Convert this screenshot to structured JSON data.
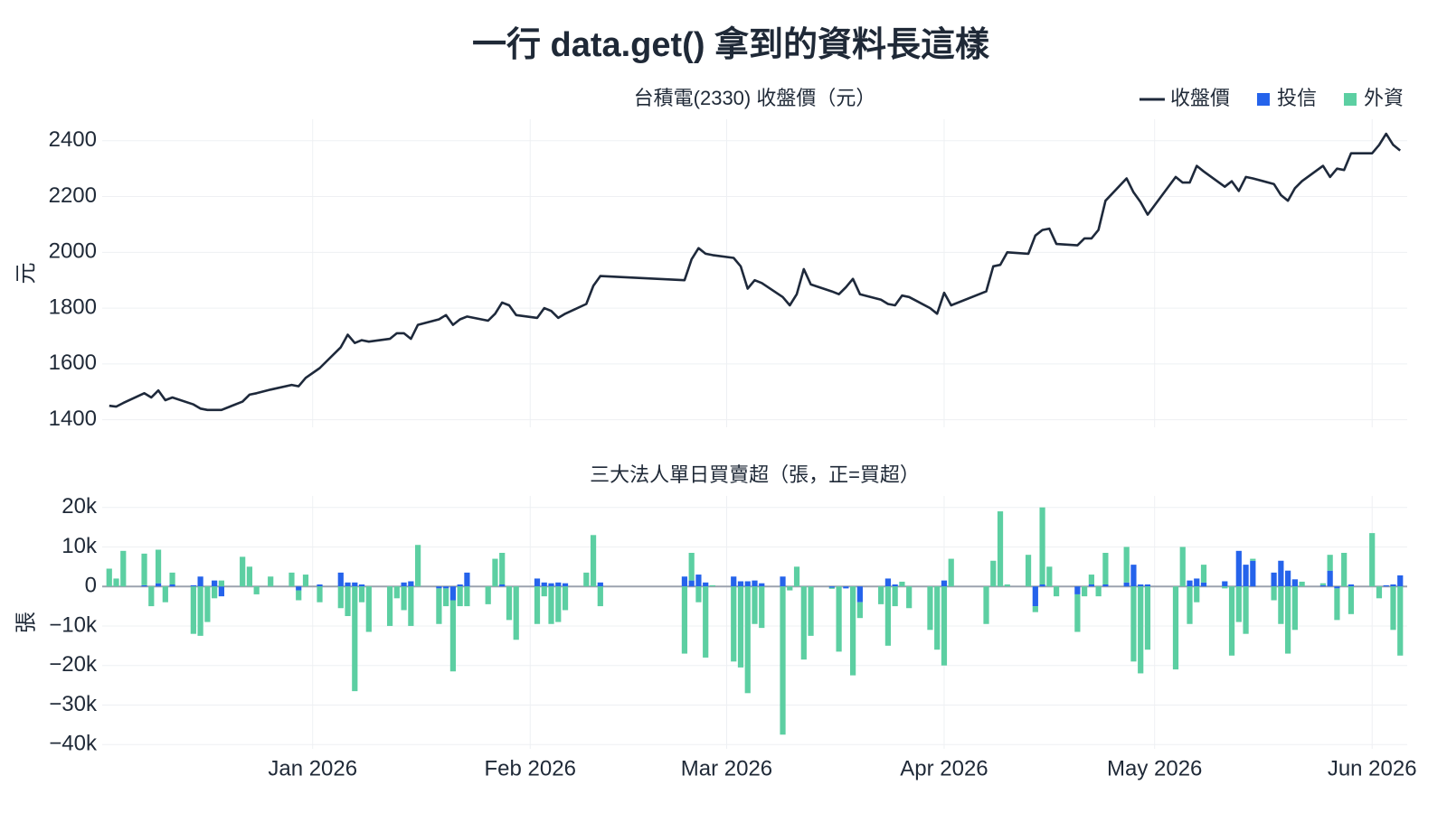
{
  "title": "一行 data.get() 拿到的資料長這樣",
  "legend": "top-right",
  "chart_data": [
    {
      "type": "line",
      "title": "台積電(2330) 收盤價（元）",
      "ylabel": "元",
      "x": [
        "2025-12-03",
        "2025-12-04",
        "2025-12-05",
        "2025-12-08",
        "2025-12-09",
        "2025-12-10",
        "2025-12-11",
        "2025-12-12",
        "2025-12-15",
        "2025-12-16",
        "2025-12-17",
        "2025-12-18",
        "2025-12-19",
        "2025-12-22",
        "2025-12-23",
        "2025-12-24",
        "2025-12-26",
        "2025-12-29",
        "2025-12-30",
        "2025-12-31",
        "2026-01-02",
        "2026-01-05",
        "2026-01-06",
        "2026-01-07",
        "2026-01-08",
        "2026-01-09",
        "2026-01-12",
        "2026-01-13",
        "2026-01-14",
        "2026-01-15",
        "2026-01-16",
        "2026-01-19",
        "2026-01-20",
        "2026-01-21",
        "2026-01-22",
        "2026-01-23",
        "2026-01-26",
        "2026-01-27",
        "2026-01-28",
        "2026-01-29",
        "2026-01-30",
        "2026-02-02",
        "2026-02-03",
        "2026-02-04",
        "2026-02-05",
        "2026-02-06",
        "2026-02-09",
        "2026-02-10",
        "2026-02-11",
        "2026-02-23",
        "2026-02-24",
        "2026-02-25",
        "2026-02-26",
        "2026-02-27",
        "2026-03-02",
        "2026-03-03",
        "2026-03-04",
        "2026-03-05",
        "2026-03-06",
        "2026-03-09",
        "2026-03-10",
        "2026-03-11",
        "2026-03-12",
        "2026-03-13",
        "2026-03-16",
        "2026-03-17",
        "2026-03-18",
        "2026-03-19",
        "2026-03-20",
        "2026-03-23",
        "2026-03-24",
        "2026-03-25",
        "2026-03-26",
        "2026-03-27",
        "2026-03-30",
        "2026-03-31",
        "2026-04-01",
        "2026-04-02",
        "2026-04-07",
        "2026-04-08",
        "2026-04-09",
        "2026-04-10",
        "2026-04-13",
        "2026-04-14",
        "2026-04-15",
        "2026-04-16",
        "2026-04-17",
        "2026-04-20",
        "2026-04-21",
        "2026-04-22",
        "2026-04-23",
        "2026-04-24",
        "2026-04-27",
        "2026-04-28",
        "2026-04-29",
        "2026-04-30",
        "2026-05-04",
        "2026-05-05",
        "2026-05-06",
        "2026-05-07",
        "2026-05-08",
        "2026-05-11",
        "2026-05-12",
        "2026-05-13",
        "2026-05-14",
        "2026-05-15",
        "2026-05-18",
        "2026-05-19",
        "2026-05-20",
        "2026-05-21",
        "2026-05-22",
        "2026-05-25",
        "2026-05-26",
        "2026-05-27",
        "2026-05-28",
        "2026-05-29",
        "2026-06-01",
        "2026-06-02",
        "2026-06-03",
        "2026-06-04",
        "2026-06-05"
      ],
      "series": [
        {
          "name": "收盤價",
          "color": "#1e293b",
          "values": [
            1450,
            1447,
            1460,
            1495,
            1480,
            1505,
            1470,
            1480,
            1455,
            1440,
            1435,
            1435,
            1435,
            1465,
            1490,
            1495,
            1508,
            1525,
            1520,
            1550,
            1585,
            1660,
            1705,
            1675,
            1685,
            1680,
            1690,
            1710,
            1710,
            1690,
            1740,
            1760,
            1775,
            1740,
            1760,
            1770,
            1755,
            1780,
            1820,
            1810,
            1775,
            1765,
            1800,
            1790,
            1765,
            1780,
            1815,
            1880,
            1915,
            1900,
            1975,
            2015,
            1995,
            1990,
            1980,
            1950,
            1870,
            1900,
            1890,
            1840,
            1810,
            1850,
            1940,
            1885,
            1860,
            1850,
            1875,
            1905,
            1850,
            1830,
            1815,
            1810,
            1845,
            1840,
            1800,
            1780,
            1855,
            1810,
            1860,
            1950,
            1955,
            2000,
            1995,
            2060,
            2080,
            2085,
            2030,
            2025,
            2050,
            2050,
            2080,
            2185,
            2265,
            2215,
            2180,
            2135,
            2270,
            2250,
            2250,
            2310,
            2290,
            2235,
            2255,
            2220,
            2270,
            2265,
            2245,
            2205,
            2185,
            2230,
            2255,
            2310,
            2270,
            2300,
            2295,
            2355,
            2355,
            2385,
            2425,
            2385,
            2365
          ]
        }
      ],
      "xlim": [
        "2025-12-02",
        "2026-06-06"
      ],
      "ylim": [
        1373,
        2477
      ],
      "yticks": [
        1400,
        1600,
        1800,
        2000,
        2200,
        2400
      ],
      "grid": true
    },
    {
      "type": "bar",
      "barmode": "relative",
      "title": "三大法人單日買賣超（張，正=買超）",
      "ylabel": "張",
      "x": [
        "2025-12-03",
        "2025-12-04",
        "2025-12-05",
        "2025-12-08",
        "2025-12-09",
        "2025-12-10",
        "2025-12-11",
        "2025-12-12",
        "2025-12-15",
        "2025-12-16",
        "2025-12-17",
        "2025-12-18",
        "2025-12-19",
        "2025-12-22",
        "2025-12-23",
        "2025-12-24",
        "2025-12-26",
        "2025-12-29",
        "2025-12-30",
        "2025-12-31",
        "2026-01-02",
        "2026-01-05",
        "2026-01-06",
        "2026-01-07",
        "2026-01-08",
        "2026-01-09",
        "2026-01-12",
        "2026-01-13",
        "2026-01-14",
        "2026-01-15",
        "2026-01-16",
        "2026-01-19",
        "2026-01-20",
        "2026-01-21",
        "2026-01-22",
        "2026-01-23",
        "2026-01-26",
        "2026-01-27",
        "2026-01-28",
        "2026-01-29",
        "2026-01-30",
        "2026-02-02",
        "2026-02-03",
        "2026-02-04",
        "2026-02-05",
        "2026-02-06",
        "2026-02-09",
        "2026-02-10",
        "2026-02-11",
        "2026-02-23",
        "2026-02-24",
        "2026-02-25",
        "2026-02-26",
        "2026-02-27",
        "2026-03-02",
        "2026-03-03",
        "2026-03-04",
        "2026-03-05",
        "2026-03-06",
        "2026-03-09",
        "2026-03-10",
        "2026-03-11",
        "2026-03-12",
        "2026-03-13",
        "2026-03-16",
        "2026-03-17",
        "2026-03-18",
        "2026-03-19",
        "2026-03-20",
        "2026-03-23",
        "2026-03-24",
        "2026-03-25",
        "2026-03-26",
        "2026-03-27",
        "2026-03-30",
        "2026-03-31",
        "2026-04-01",
        "2026-04-02",
        "2026-04-07",
        "2026-04-08",
        "2026-04-09",
        "2026-04-10",
        "2026-04-13",
        "2026-04-14",
        "2026-04-15",
        "2026-04-16",
        "2026-04-17",
        "2026-04-20",
        "2026-04-21",
        "2026-04-22",
        "2026-04-23",
        "2026-04-24",
        "2026-04-27",
        "2026-04-28",
        "2026-04-29",
        "2026-04-30",
        "2026-05-04",
        "2026-05-05",
        "2026-05-06",
        "2026-05-07",
        "2026-05-08",
        "2026-05-11",
        "2026-05-12",
        "2026-05-13",
        "2026-05-14",
        "2026-05-15",
        "2026-05-18",
        "2026-05-19",
        "2026-05-20",
        "2026-05-21",
        "2026-05-22",
        "2026-05-25",
        "2026-05-26",
        "2026-05-27",
        "2026-05-28",
        "2026-05-29",
        "2026-06-01",
        "2026-06-02",
        "2026-06-03",
        "2026-06-04",
        "2026-06-05"
      ],
      "series": [
        {
          "name": "投信",
          "color": "#2563eb",
          "values": [
            0,
            0,
            0,
            300,
            0,
            800,
            0,
            500,
            300,
            2500,
            0,
            1500,
            -2500,
            0,
            0,
            0,
            0,
            0,
            -1000,
            0,
            500,
            3500,
            1000,
            1000,
            500,
            0,
            0,
            0,
            1000,
            1300,
            0,
            -500,
            -500,
            -3500,
            500,
            3500,
            0,
            0,
            500,
            0,
            0,
            2000,
            1000,
            800,
            1000,
            800,
            0,
            0,
            1000,
            2500,
            1500,
            3000,
            1000,
            0,
            2500,
            1300,
            1300,
            1500,
            800,
            2500,
            0,
            0,
            0,
            0,
            -300,
            0,
            -500,
            0,
            -4000,
            0,
            2000,
            500,
            0,
            0,
            0,
            0,
            1500,
            0,
            0,
            0,
            0,
            0,
            0,
            -5000,
            500,
            0,
            0,
            -2000,
            0,
            500,
            0,
            500,
            1000,
            5500,
            500,
            500,
            0,
            0,
            1500,
            2000,
            1000,
            1300,
            0,
            9000,
            5500,
            6500,
            3500,
            6500,
            4000,
            1800,
            0,
            300,
            4000,
            -500,
            0,
            500,
            0,
            0,
            300,
            500,
            2800
          ]
        },
        {
          "name": "外資",
          "color": "#5ccfa2",
          "values": [
            4500,
            2000,
            9000,
            8000,
            -5000,
            8500,
            -4000,
            3000,
            -12000,
            -12500,
            -9000,
            -3000,
            1500,
            7500,
            5000,
            -2000,
            2500,
            3500,
            -2500,
            3000,
            -4000,
            -5500,
            -7500,
            -26500,
            -4000,
            -11500,
            -10000,
            -3000,
            -6000,
            -10000,
            10500,
            -9000,
            -4500,
            -18000,
            -5000,
            -5000,
            -4500,
            7000,
            8000,
            -8500,
            -13500,
            -9500,
            -2500,
            -9500,
            -9000,
            -6000,
            3500,
            13000,
            -5000,
            -17000,
            7000,
            -4000,
            -18000,
            300,
            -19000,
            -20500,
            -27000,
            -9500,
            -10500,
            -37500,
            -1000,
            5000,
            -18500,
            -12500,
            -300,
            -16500,
            0,
            -22500,
            -4000,
            -4500,
            -15000,
            -5000,
            1200,
            -5500,
            -11000,
            -16000,
            -20000,
            7000,
            -9500,
            6500,
            19000,
            500,
            8000,
            -1500,
            19500,
            5000,
            -2500,
            -9500,
            -2500,
            2500,
            -2500,
            8000,
            9000,
            -19000,
            -22000,
            -16000,
            -21000,
            10000,
            -9500,
            -4000,
            4500,
            -500,
            -17500,
            -9000,
            -12000,
            500,
            -3500,
            -9500,
            -17000,
            -11000,
            1200,
            500,
            4000,
            -8000,
            8500,
            -7000,
            13500,
            -3000,
            0,
            -11000,
            -17500
          ]
        }
      ],
      "xlim": [
        "2025-12-02",
        "2026-06-06"
      ],
      "ylim": [
        -41100,
        22900
      ],
      "yticks": [
        {
          "value": -40000,
          "label": "−40k"
        },
        {
          "value": -30000,
          "label": "−30k"
        },
        {
          "value": -20000,
          "label": "−20k"
        },
        {
          "value": -10000,
          "label": "−10k"
        },
        0,
        {
          "value": 10000,
          "label": "10k"
        },
        {
          "value": 20000,
          "label": "20k"
        }
      ],
      "xticks": [
        {
          "value": "2026-01-01",
          "label": "Jan 2026"
        },
        {
          "value": "2026-02-01",
          "label": "Feb 2026"
        },
        {
          "value": "2026-03-01",
          "label": "Mar 2026"
        },
        {
          "value": "2026-04-01",
          "label": "Apr 2026"
        },
        {
          "value": "2026-05-01",
          "label": "May 2026"
        },
        {
          "value": "2026-06-01",
          "label": "Jun 2026"
        }
      ],
      "grid": true
    }
  ]
}
